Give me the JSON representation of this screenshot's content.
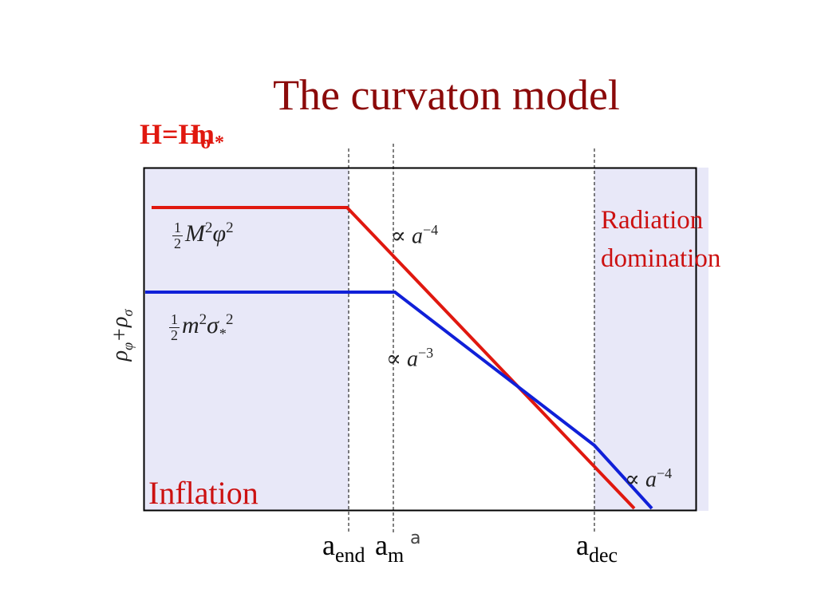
{
  "slide": {
    "title": "The curvaton model",
    "h_label": {
      "main": "H=",
      "overlay_a": "H",
      "overlay_b": "m",
      "sub_a": "σ",
      "sub_b": "*"
    },
    "region_labels": {
      "inflation": "Inflation",
      "radiation": "Radiation domination"
    },
    "y_axis_label": {
      "rho": "ρ",
      "sub1": "φ",
      "plus": "+",
      "rho2": "ρ",
      "sub2": "σ"
    },
    "x_axis_label": "a",
    "x_ticks": [
      {
        "base": "a",
        "sub": "end"
      },
      {
        "base": "a",
        "sub": "m"
      },
      {
        "base": "a",
        "sub": "dec"
      }
    ],
    "formulas": {
      "inflaton": {
        "num": "1",
        "den": "2",
        "body": "M",
        "sup1": "2",
        "body2": "φ",
        "sup2": "2"
      },
      "curvaton": {
        "num": "1",
        "den": "2",
        "body": "m",
        "sup1": "2",
        "body2": "σ",
        "sub": "*",
        "sup2": "2"
      }
    },
    "scalings": [
      {
        "prop": "∝",
        "var": "a",
        "exp": "−4"
      },
      {
        "prop": "∝",
        "var": "a",
        "exp": "−3"
      },
      {
        "prop": "∝",
        "var": "a",
        "exp": "−4"
      }
    ],
    "colors": {
      "title": "#8b0a0a",
      "inflaton_curve": "#e0180f",
      "curvaton_curve": "#1020d8",
      "shade": "#e8e8f8",
      "label_red": "#cc1111"
    }
  }
}
